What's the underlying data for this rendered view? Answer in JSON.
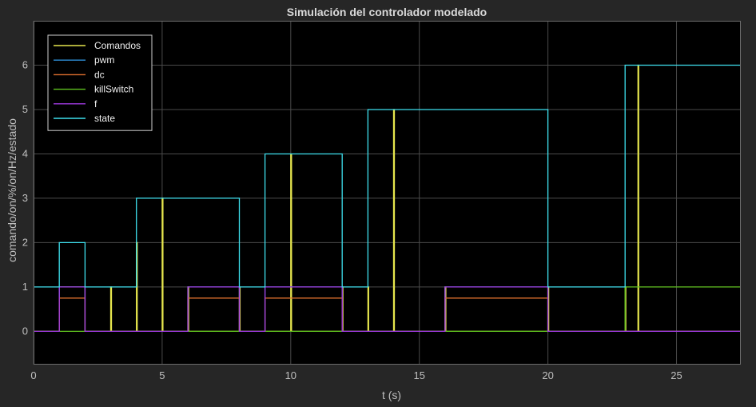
{
  "chart_data": {
    "type": "line",
    "step": true,
    "title": "Simulación del controlador modelado",
    "xlabel": "t (s)",
    "ylabel": "comando/on/%/on/Hz/estado",
    "xlim": [
      0,
      27.5
    ],
    "ylim": [
      -0.75,
      7.0
    ],
    "xticks": [
      0,
      5,
      10,
      15,
      20,
      25
    ],
    "yticks": [
      0,
      1,
      2,
      3,
      4,
      5,
      6
    ],
    "grid": true,
    "legend_position": "top-left",
    "series": [
      {
        "name": "Comandos",
        "color": "#e6e64d",
        "x": [
          0,
          1,
          1,
          2,
          2,
          3,
          3,
          3.03,
          3.03,
          4,
          4,
          4.03,
          4.03,
          5,
          5,
          5.03,
          5.03,
          6,
          6,
          6.03,
          6.03,
          8,
          8,
          8.03,
          8.03,
          10,
          10,
          10.03,
          10.03,
          12,
          12,
          12.03,
          12.03,
          13,
          13,
          13.03,
          13.03,
          14,
          14,
          14.03,
          14.03,
          16,
          16,
          16.03,
          16.03,
          20,
          20,
          20.03,
          20.03,
          23,
          23,
          23.03,
          23.03,
          23.5,
          23.5,
          23.53,
          23.53,
          27.5
        ],
        "y": [
          0,
          0,
          1,
          1,
          0,
          0,
          1,
          1,
          0,
          0,
          2,
          2,
          0,
          0,
          3,
          3,
          0,
          0,
          1,
          1,
          0,
          0,
          1,
          1,
          0,
          0,
          4,
          4,
          0,
          0,
          1,
          1,
          0,
          0,
          1,
          1,
          0,
          0,
          5,
          5,
          0,
          0,
          1,
          1,
          0,
          0,
          1,
          1,
          0,
          0,
          1,
          1,
          0,
          0,
          6,
          6,
          0,
          0
        ]
      },
      {
        "name": "pwm",
        "color": "#2e8fd9",
        "x": [
          0,
          1,
          1,
          2,
          2,
          6,
          6,
          8,
          8,
          9,
          9,
          12,
          12,
          16,
          16,
          20,
          20,
          27.5
        ],
        "y": [
          0,
          0,
          1,
          1,
          0,
          0,
          1,
          1,
          0,
          0,
          1,
          1,
          0,
          0,
          1,
          1,
          0,
          0
        ]
      },
      {
        "name": "dc",
        "color": "#e0702e",
        "x": [
          0,
          1,
          1,
          2,
          2,
          6,
          6,
          8,
          8,
          9,
          9,
          12,
          12,
          16,
          16,
          20,
          20,
          27.5
        ],
        "y": [
          0,
          0,
          0.75,
          0.75,
          0,
          0,
          0.75,
          0.75,
          0,
          0,
          0.75,
          0.75,
          0,
          0,
          0.75,
          0.75,
          0,
          0
        ]
      },
      {
        "name": "killSwitch",
        "color": "#5fc21e",
        "x": [
          0,
          23,
          23,
          27.5
        ],
        "y": [
          0,
          0,
          1,
          1
        ]
      },
      {
        "name": "f",
        "color": "#a03ae0",
        "x": [
          0,
          1,
          1,
          2,
          2,
          6,
          6,
          8,
          8,
          9,
          9,
          12,
          12,
          16,
          16,
          20,
          20,
          27.5
        ],
        "y": [
          0,
          0,
          1,
          1,
          0,
          0,
          1,
          1,
          0,
          0,
          1,
          1,
          0,
          0,
          1,
          1,
          0,
          0
        ]
      },
      {
        "name": "state",
        "color": "#3ee0ee",
        "x": [
          0,
          1,
          1,
          2,
          2,
          4,
          4,
          8,
          8,
          9,
          9,
          12,
          12,
          13,
          13,
          20,
          20,
          23,
          23,
          27.5
        ],
        "y": [
          1,
          1,
          2,
          2,
          1,
          1,
          3,
          3,
          1,
          1,
          4,
          4,
          1,
          1,
          5,
          5,
          1,
          1,
          6,
          6
        ]
      }
    ]
  }
}
